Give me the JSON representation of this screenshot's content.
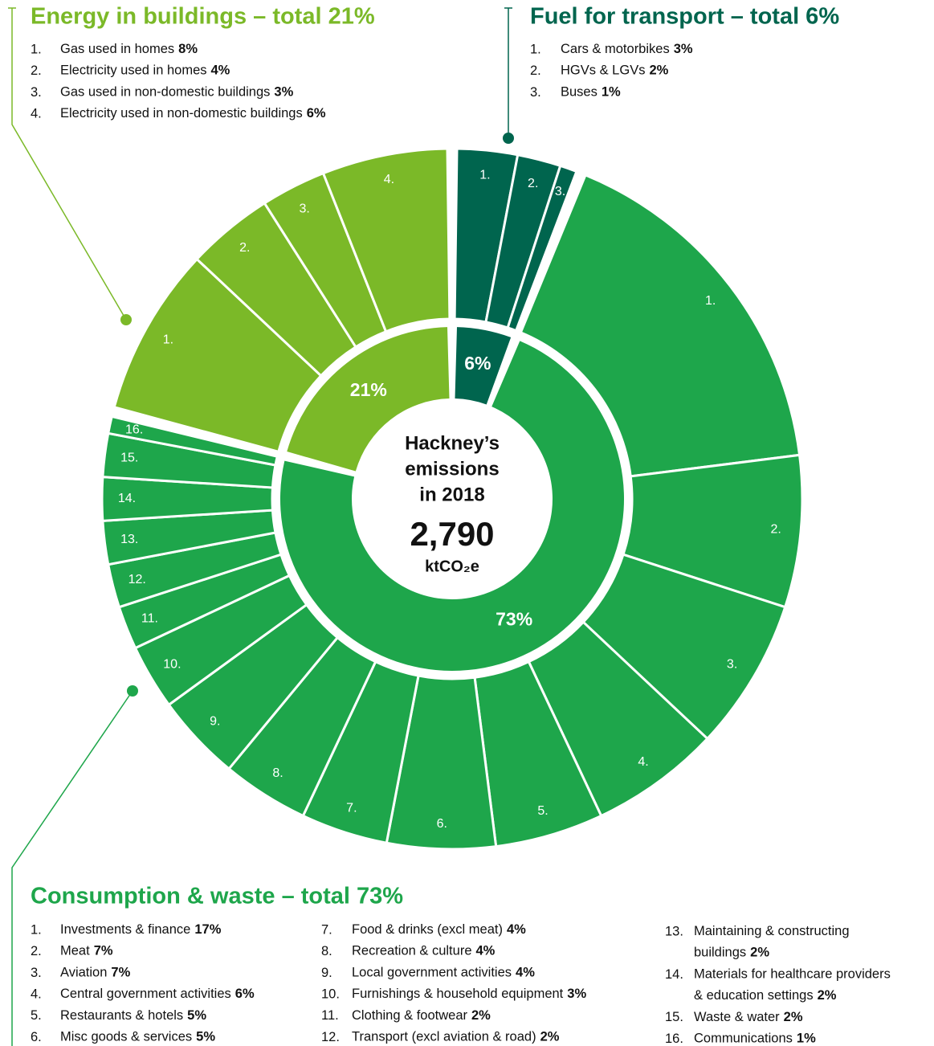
{
  "chart_data": {
    "type": "sunburst",
    "center": {
      "lines": [
        "Hackney’s",
        "emissions",
        "in 2018"
      ],
      "total": {
        "value": 2790,
        "label": "2,790"
      },
      "unit": "ktCO₂e"
    },
    "groups": [
      {
        "heading": "Fuel for transport – total 6%",
        "value": 6,
        "value_label": "6%",
        "color": "#00654e",
        "items": [
          {
            "number": "1.",
            "label": [
              "Cars & motorbikes"
            ],
            "value": 3,
            "value_label": "3%"
          },
          {
            "number": "2.",
            "label": [
              "HGVs & LGVs"
            ],
            "value": 2,
            "value_label": "2%"
          },
          {
            "number": "3.",
            "label": [
              "Buses"
            ],
            "value": 1,
            "value_label": "1%"
          }
        ]
      },
      {
        "heading": "Consumption & waste – total 73%",
        "value": 73,
        "value_label": "73%",
        "color": "#1ea64b",
        "items": [
          {
            "number": "1.",
            "label": [
              "Investments & finance"
            ],
            "value": 17,
            "value_label": "17%"
          },
          {
            "number": "2.",
            "label": [
              "Meat"
            ],
            "value": 7,
            "value_label": "7%"
          },
          {
            "number": "3.",
            "label": [
              "Aviation"
            ],
            "value": 7,
            "value_label": "7%"
          },
          {
            "number": "4.",
            "label": [
              "Central government activities"
            ],
            "value": 6,
            "value_label": "6%"
          },
          {
            "number": "5.",
            "label": [
              "Restaurants & hotels"
            ],
            "value": 5,
            "value_label": "5%"
          },
          {
            "number": "6.",
            "label": [
              "Misc goods & services"
            ],
            "value": 5,
            "value_label": "5%"
          },
          {
            "number": "7.",
            "label": [
              "Food & drinks (excl meat)"
            ],
            "value": 4,
            "value_label": "4%"
          },
          {
            "number": "8.",
            "label": [
              "Recreation & culture"
            ],
            "value": 4,
            "value_label": "4%"
          },
          {
            "number": "9.",
            "label": [
              "Local government activities"
            ],
            "value": 4,
            "value_label": "4%"
          },
          {
            "number": "10.",
            "label": [
              "Furnishings & household equipment"
            ],
            "value": 3,
            "value_label": "3%"
          },
          {
            "number": "11.",
            "label": [
              "Clothing & footwear"
            ],
            "value": 2,
            "value_label": "2%"
          },
          {
            "number": "12.",
            "label": [
              "Transport (excl aviation & road)"
            ],
            "value": 2,
            "value_label": "2%"
          },
          {
            "number": "13.",
            "label": [
              "Maintaining & constructing",
              "buildings"
            ],
            "value": 2,
            "value_label": "2%"
          },
          {
            "number": "14.",
            "label": [
              "Materials for healthcare providers",
              "& education settings"
            ],
            "value": 2,
            "value_label": "2%"
          },
          {
            "number": "15.",
            "label": [
              "Waste & water"
            ],
            "value": 2,
            "value_label": "2%"
          },
          {
            "number": "16.",
            "label": [
              "Communications"
            ],
            "value": 1,
            "value_label": "1%"
          }
        ]
      },
      {
        "heading": "Energy in buildings – total 21%",
        "value": 21,
        "value_label": "21%",
        "color": "#7bb928",
        "items": [
          {
            "number": "1.",
            "label": [
              "Gas used in homes"
            ],
            "value": 8,
            "value_label": "8%"
          },
          {
            "number": "2.",
            "label": [
              "Electricity used in homes"
            ],
            "value": 4,
            "value_label": "4%"
          },
          {
            "number": "3.",
            "label": [
              "Gas used in non-domestic buildings"
            ],
            "value": 3,
            "value_label": "3%"
          },
          {
            "number": "4.",
            "label": [
              "Electricity used in non-domestic buildings"
            ],
            "value": 6,
            "value_label": "6%"
          }
        ]
      }
    ]
  }
}
